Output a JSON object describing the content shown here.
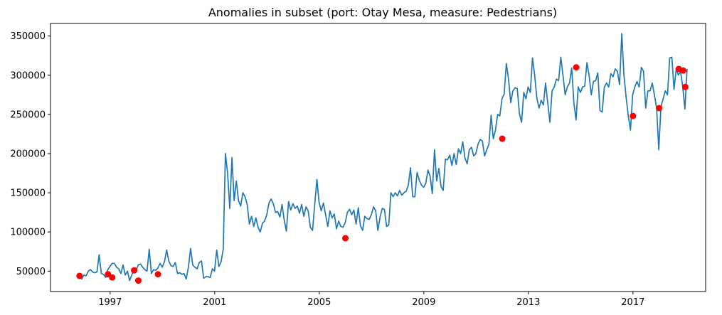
{
  "chart_data": {
    "type": "line",
    "title": "Anomalies in subset (port: Otay Mesa, measure: Pedestrians)",
    "xlabel": "",
    "ylabel": "",
    "grid": false,
    "legend": "none",
    "x_range": [
      1994.72,
      2019.78
    ],
    "ylim": [
      24000,
      366000
    ],
    "x_ticks": [
      1997,
      2001,
      2005,
      2009,
      2013,
      2017
    ],
    "x_tick_labels": [
      "1997",
      "2001",
      "2005",
      "2009",
      "2013",
      "2017"
    ],
    "y_ticks": [
      50000,
      100000,
      150000,
      200000,
      250000,
      300000,
      350000
    ],
    "y_tick_labels": [
      "50000",
      "100000",
      "150000",
      "200000",
      "250000",
      "300000",
      "350000"
    ],
    "colors": {
      "line": "#1f77b4",
      "anomaly": "#ff0000",
      "axis": "#000000",
      "background": "#ffffff"
    },
    "series": [
      {
        "type": "line",
        "x_start": 1995.83,
        "x_step": 0.0833,
        "values": [
          44000,
          40000,
          45000,
          44000,
          50000,
          52000,
          49000,
          48000,
          49000,
          71000,
          47000,
          46000,
          42000,
          52000,
          56000,
          60000,
          60000,
          55000,
          53000,
          47000,
          58000,
          45000,
          50000,
          38000,
          45000,
          52000,
          51000,
          58000,
          59000,
          55000,
          52000,
          50000,
          78000,
          47000,
          52000,
          51000,
          54000,
          60000,
          55000,
          62000,
          77000,
          63000,
          57000,
          56000,
          61000,
          47000,
          48000,
          46000,
          47000,
          40000,
          55000,
          79000,
          58000,
          55000,
          53000,
          61000,
          63000,
          41000,
          43000,
          43000,
          42000,
          53000,
          50000,
          77000,
          56000,
          62000,
          78000,
          200000,
          175000,
          130000,
          195000,
          140000,
          165000,
          140000,
          133000,
          150000,
          145000,
          135000,
          110000,
          120000,
          107000,
          118000,
          106000,
          100000,
          111000,
          114000,
          122000,
          137000,
          142000,
          136000,
          125000,
          126000,
          119000,
          135000,
          115000,
          101000,
          139000,
          128000,
          136000,
          130000,
          133000,
          124000,
          135000,
          120000,
          132000,
          127000,
          106000,
          102000,
          135000,
          167000,
          138000,
          127000,
          137000,
          122000,
          107000,
          127000,
          118000,
          123000,
          104000,
          114000,
          107000,
          106000,
          112000,
          125000,
          129000,
          122000,
          128000,
          110000,
          131000,
          108000,
          102000,
          120000,
          117000,
          116000,
          122000,
          132000,
          127000,
          102000,
          119000,
          130000,
          129000,
          107000,
          109000,
          150000,
          145000,
          150000,
          146000,
          153000,
          147000,
          150000,
          152000,
          160000,
          182000,
          145000,
          145000,
          176000,
          166000,
          160000,
          157000,
          162000,
          179000,
          171000,
          149000,
          205000,
          165000,
          181000,
          158000,
          153000,
          193000,
          192000,
          198000,
          185000,
          200000,
          186000,
          206000,
          200000,
          215000,
          194000,
          187000,
          205000,
          208000,
          197000,
          200000,
          212000,
          218000,
          216000,
          197000,
          205000,
          212000,
          249000,
          219000,
          230000,
          250000,
          248000,
          270000,
          276000,
          315000,
          295000,
          265000,
          280000,
          284000,
          283000,
          251000,
          240000,
          278000,
          270000,
          285000,
          278000,
          322000,
          300000,
          271000,
          258000,
          268000,
          262000,
          290000,
          265000,
          240000,
          280000,
          285000,
          295000,
          293000,
          323000,
          300000,
          275000,
          285000,
          290000,
          309000,
          265000,
          243000,
          285000,
          278000,
          285000,
          286000,
          316000,
          300000,
          275000,
          292000,
          293000,
          303000,
          255000,
          253000,
          285000,
          290000,
          285000,
          302000,
          298000,
          308000,
          305000,
          288000,
          353000,
          300000,
          272000,
          248000,
          230000,
          275000,
          285000,
          292000,
          285000,
          310000,
          305000,
          258000,
          280000,
          280000,
          290000,
          275000,
          258000,
          205000,
          260000,
          270000,
          280000,
          275000,
          322000,
          323000,
          282000,
          308000,
          300000,
          305000,
          285000,
          257000,
          308000
        ]
      },
      {
        "type": "scatter",
        "name": "anomalies",
        "points": [
          {
            "x": 1995.83,
            "y": 44000
          },
          {
            "x": 1996.92,
            "y": 46000
          },
          {
            "x": 1997.08,
            "y": 42000
          },
          {
            "x": 1997.92,
            "y": 51000
          },
          {
            "x": 1998.08,
            "y": 38000
          },
          {
            "x": 1998.83,
            "y": 46000
          },
          {
            "x": 2006.0,
            "y": 92000
          },
          {
            "x": 2012.0,
            "y": 219000
          },
          {
            "x": 2014.83,
            "y": 310000
          },
          {
            "x": 2017.0,
            "y": 248000
          },
          {
            "x": 2018.0,
            "y": 258000
          },
          {
            "x": 2018.75,
            "y": 308000
          },
          {
            "x": 2018.92,
            "y": 306000
          },
          {
            "x": 2019.0,
            "y": 285000
          }
        ]
      }
    ]
  }
}
